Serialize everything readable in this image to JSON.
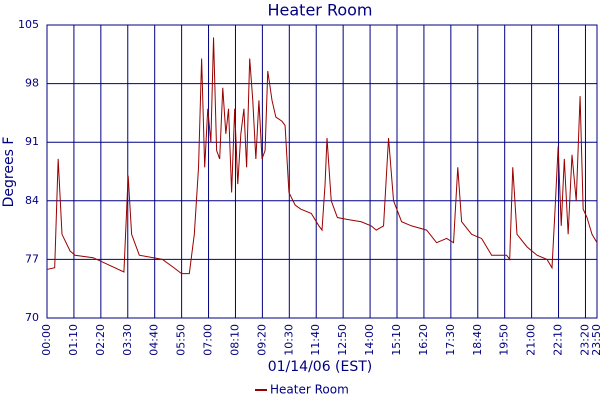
{
  "chart_data": {
    "type": "line",
    "title": "Heater Room",
    "xlabel": "01/14/06 (EST)",
    "ylabel": "Degrees F",
    "ylim": [
      70,
      105
    ],
    "yticks": [
      70,
      77,
      84,
      91,
      98,
      105
    ],
    "xlim": [
      0,
      1430
    ],
    "xticks": [
      {
        "value": 0,
        "label": "00:00"
      },
      {
        "value": 70,
        "label": "01:10"
      },
      {
        "value": 140,
        "label": "02:20"
      },
      {
        "value": 210,
        "label": "03:30"
      },
      {
        "value": 280,
        "label": "04:40"
      },
      {
        "value": 350,
        "label": "05:50"
      },
      {
        "value": 420,
        "label": "07:00"
      },
      {
        "value": 490,
        "label": "08:10"
      },
      {
        "value": 560,
        "label": "09:20"
      },
      {
        "value": 630,
        "label": "10:30"
      },
      {
        "value": 700,
        "label": "11:40"
      },
      {
        "value": 770,
        "label": "12:50"
      },
      {
        "value": 840,
        "label": "14:00"
      },
      {
        "value": 910,
        "label": "15:10"
      },
      {
        "value": 980,
        "label": "16:20"
      },
      {
        "value": 1050,
        "label": "17:30"
      },
      {
        "value": 1120,
        "label": "18:40"
      },
      {
        "value": 1190,
        "label": "19:50"
      },
      {
        "value": 1260,
        "label": "21:00"
      },
      {
        "value": 1330,
        "label": "22:10"
      },
      {
        "value": 1400,
        "label": "23:20"
      },
      {
        "value": 1430,
        "label": "23:50"
      }
    ],
    "grid": true,
    "legend": "bottom",
    "x": [
      0,
      20,
      29,
      39,
      60,
      73,
      120,
      200,
      211,
      220,
      240,
      300,
      330,
      350,
      370,
      383,
      394,
      402,
      410,
      418,
      426,
      433,
      441,
      449,
      457,
      465,
      472,
      480,
      488,
      496,
      504,
      512,
      519,
      527,
      535,
      543,
      551,
      559,
      567,
      574,
      585,
      595,
      611,
      619,
      629,
      645,
      660,
      687,
      707,
      715,
      723,
      728,
      739,
      755,
      778,
      817,
      843,
      856,
      875,
      888,
      901,
      922,
      948,
      987,
      1013,
      1039,
      1057,
      1068,
      1078,
      1104,
      1130,
      1156,
      1195,
      1203,
      1211,
      1222,
      1248,
      1274,
      1300,
      1313,
      1321,
      1329,
      1337,
      1345,
      1355,
      1365,
      1376,
      1386,
      1394,
      1404,
      1417,
      1430
    ],
    "series": [
      {
        "name": "Heater Room",
        "color": "#990000",
        "values": [
          75.8,
          76,
          89,
          80,
          78,
          77.5,
          77.2,
          75.5,
          87,
          80,
          77.5,
          77,
          76,
          75.3,
          75.3,
          80,
          88,
          101,
          88,
          95,
          91,
          103.5,
          90,
          89,
          97.5,
          92,
          95,
          85,
          95,
          86,
          92,
          95,
          88,
          101,
          96,
          89,
          96,
          89,
          90,
          99.5,
          96,
          94,
          93.5,
          93,
          85,
          83.5,
          83,
          82.5,
          81,
          80.5,
          86,
          91.5,
          84,
          82,
          81.8,
          81.5,
          81,
          80.5,
          81,
          91.5,
          84,
          81.5,
          81,
          80.5,
          79,
          79.5,
          79,
          88,
          81.5,
          80,
          79.5,
          77.5,
          77.5,
          77,
          88,
          80,
          78.5,
          77.5,
          77,
          76,
          83,
          90.5,
          81,
          89,
          80,
          89.5,
          84,
          96.5,
          83,
          82,
          80,
          79
        ]
      }
    ]
  }
}
